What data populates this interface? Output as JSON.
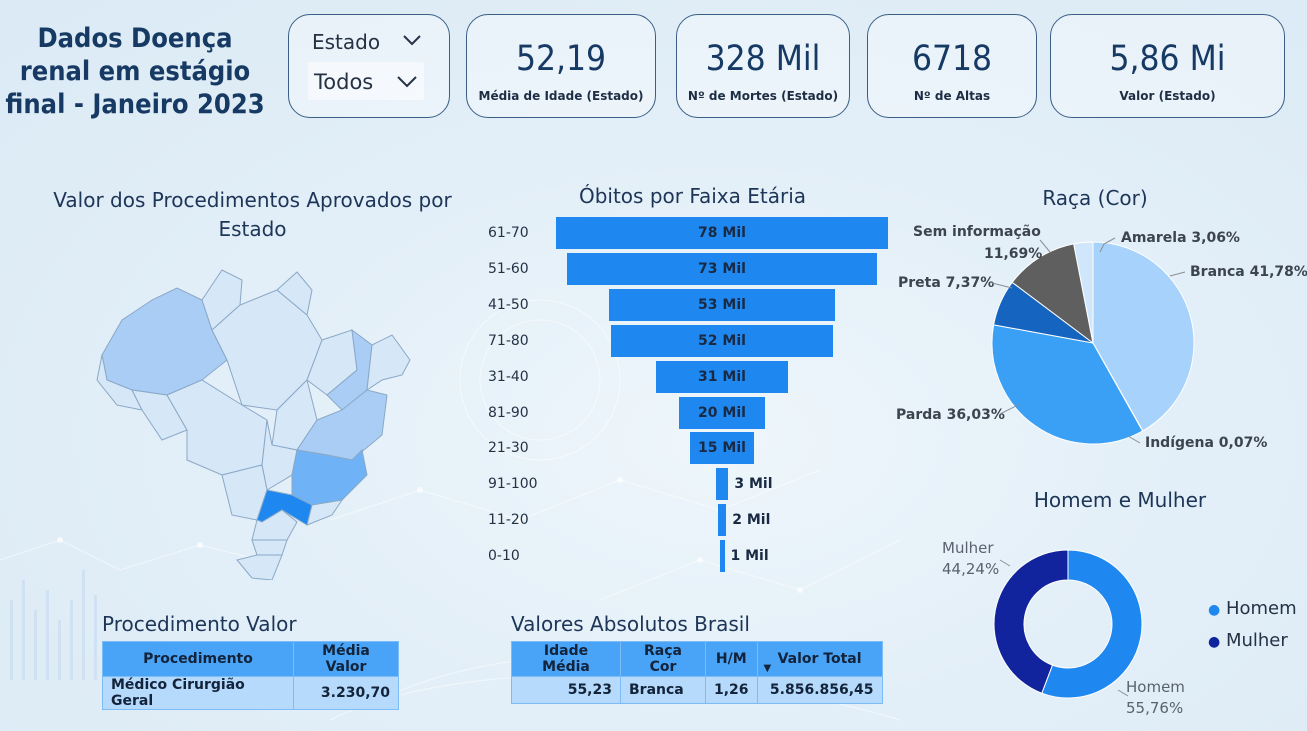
{
  "title": "Dados Doença renal em estágio final - Janeiro 2023",
  "title_lines": [
    "Dados Doença",
    "renal em estágio",
    "final - Janeiro 2023"
  ],
  "filter": {
    "label": "Estado",
    "value": "Todos"
  },
  "kpis": [
    {
      "value": "52,19",
      "label": "Média de Idade (Estado)"
    },
    {
      "value": "328 Mil",
      "label": "Nº de Mortes (Estado)"
    },
    {
      "value": "6718",
      "label": "Nº de Altas"
    },
    {
      "value": "5,86 Mi",
      "label": "Valor (Estado)"
    }
  ],
  "map": {
    "title_line1": "Valor dos Procedimentos Aprovados por",
    "title_line2": "Estado"
  },
  "funnel": {
    "title": "Óbitos por Faixa Etária",
    "items": [
      {
        "label": "61-70",
        "value": 78,
        "text": "78 Mil"
      },
      {
        "label": "51-60",
        "value": 73,
        "text": "73 Mil"
      },
      {
        "label": "41-50",
        "value": 53,
        "text": "53 Mil"
      },
      {
        "label": "71-80",
        "value": 52,
        "text": "52 Mil"
      },
      {
        "label": "31-40",
        "value": 31,
        "text": "31 Mil"
      },
      {
        "label": "81-90",
        "value": 20,
        "text": "20 Mil"
      },
      {
        "label": "21-30",
        "value": 15,
        "text": "15 Mil"
      },
      {
        "label": "91-100",
        "value": 3,
        "text": "3 Mil"
      },
      {
        "label": "11-20",
        "value": 2,
        "text": "2 Mil"
      },
      {
        "label": "0-10",
        "value": 1,
        "text": "1 Mil"
      }
    ]
  },
  "raca": {
    "title": "Raça (Cor)",
    "labels": {
      "sem_info_1": "Sem informação",
      "sem_info_2": "11,69%",
      "amarela": "Amarela 3,06%",
      "branca": "Branca 41,78%",
      "preta": "Preta 7,37%",
      "parda": "Parda 36,03%",
      "indigena": "Indígena 0,07%"
    }
  },
  "sexo": {
    "title": "Homem e Mulher",
    "mulher_1": "Mulher",
    "mulher_2": "44,24%",
    "homem_1": "Homem",
    "homem_2": "55,76%",
    "legend_homem": "Homem",
    "legend_mulher": "Mulher"
  },
  "proc_table": {
    "title": "Procedimento Valor",
    "headers": [
      "Procedimento",
      "Média Valor"
    ],
    "row": [
      "Médico Cirurgião Geral",
      "3.230,70"
    ]
  },
  "abs_table": {
    "title": "Valores Absolutos Brasil",
    "headers": [
      "Idade Média",
      "Raça Cor",
      "H/M",
      "Valor Total"
    ],
    "row": [
      "55,23",
      "Branca",
      "1,26",
      "5.856.856,45"
    ]
  },
  "chart_data": [
    {
      "type": "bar",
      "title": "Óbitos por Faixa Etária",
      "categories": [
        "61-70",
        "51-60",
        "41-50",
        "71-80",
        "31-40",
        "81-90",
        "21-30",
        "91-100",
        "11-20",
        "0-10"
      ],
      "values": [
        78,
        73,
        53,
        52,
        31,
        20,
        15,
        3,
        2,
        1
      ],
      "unit": "Mil"
    },
    {
      "type": "pie",
      "title": "Raça (Cor)",
      "categories": [
        "Branca",
        "Indígena",
        "Parda",
        "Preta",
        "Sem informação",
        "Amarela"
      ],
      "values": [
        41.78,
        0.07,
        36.03,
        7.37,
        11.69,
        3.06
      ],
      "colors": [
        "#a7d2fb",
        "#1a56b5",
        "#3aa0f5",
        "#1565c0",
        "#5f5f5f",
        "#cfe6fb"
      ]
    },
    {
      "type": "pie",
      "title": "Homem e Mulher",
      "categories": [
        "Homem",
        "Mulher"
      ],
      "values": [
        55.76,
        44.24
      ],
      "colors": [
        "#1e88f0",
        "#12239e"
      ]
    }
  ],
  "colors": {
    "accent": "#1e88f0",
    "dark_navy": "#12239e",
    "title": "#163a63"
  }
}
